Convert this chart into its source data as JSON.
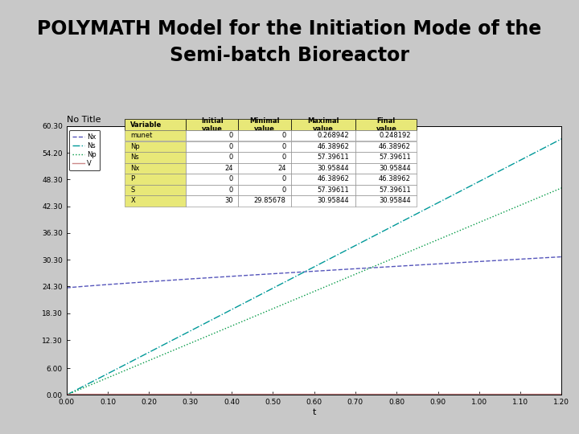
{
  "title_line1": "POLYMATH Model for the Initiation Mode of the",
  "title_line2": "Semi-batch Bioreactor",
  "plot_title": "No Title",
  "xlabel": "t",
  "bg_color": "#c8c8c8",
  "plot_bg_color": "#ffffff",
  "title_fontsize": 17,
  "xmin": 0.0,
  "xmax": 1.2,
  "ymin": 0.0,
  "ymax": 60.3,
  "ytick_vals": [
    0.0,
    6.0,
    12.3,
    18.3,
    24.3,
    30.3,
    36.3,
    42.3,
    48.3,
    54.2,
    60.3
  ],
  "ytick_labels": [
    "0.00",
    "6.00",
    "12.30",
    "18.30",
    "24.30",
    "30.30",
    "36.30",
    "42.30",
    "48.30",
    "54.20",
    "60.30"
  ],
  "xtick_vals": [
    0.0,
    0.1,
    0.2,
    0.3,
    0.4,
    0.5,
    0.6,
    0.7,
    0.8,
    0.9,
    1.0,
    1.1,
    1.2
  ],
  "xtick_labels": [
    "0.00",
    "0.10",
    "0.20",
    "0.30",
    "0.40",
    "0.50",
    "0.60",
    "0.70",
    "0.80",
    "0.90",
    "1.00",
    "1.10",
    "1.20"
  ],
  "lines": [
    {
      "name": "Nx",
      "color": "#5555bb",
      "style": "--",
      "lw": 1.0
    },
    {
      "name": "Ns",
      "color": "#009999",
      "style": "-.",
      "lw": 1.0
    },
    {
      "name": "Np",
      "color": "#009944",
      "style": ":",
      "lw": 1.0
    },
    {
      "name": "V",
      "color": "#cc8888",
      "style": "-",
      "lw": 1.0
    }
  ],
  "table_header_bg": "#e8e878",
  "table_row_bg": "#ffffff",
  "table_rows": [
    [
      "munet",
      "0",
      "0",
      "0.268942",
      "0.248192"
    ],
    [
      "Np",
      "0",
      "0",
      "46.38962",
      "46.38962"
    ],
    [
      "Ns",
      "0",
      "0",
      "57.39611",
      "57.39611"
    ],
    [
      "Nx",
      "24",
      "24",
      "30.95844",
      "30.95844"
    ],
    [
      "P",
      "0",
      "0",
      "46.38962",
      "46.38962"
    ],
    [
      "S",
      "0",
      "0",
      "57.39611",
      "57.39611"
    ],
    [
      "X",
      "30",
      "29.85678",
      "30.95844",
      "30.95844"
    ]
  ]
}
